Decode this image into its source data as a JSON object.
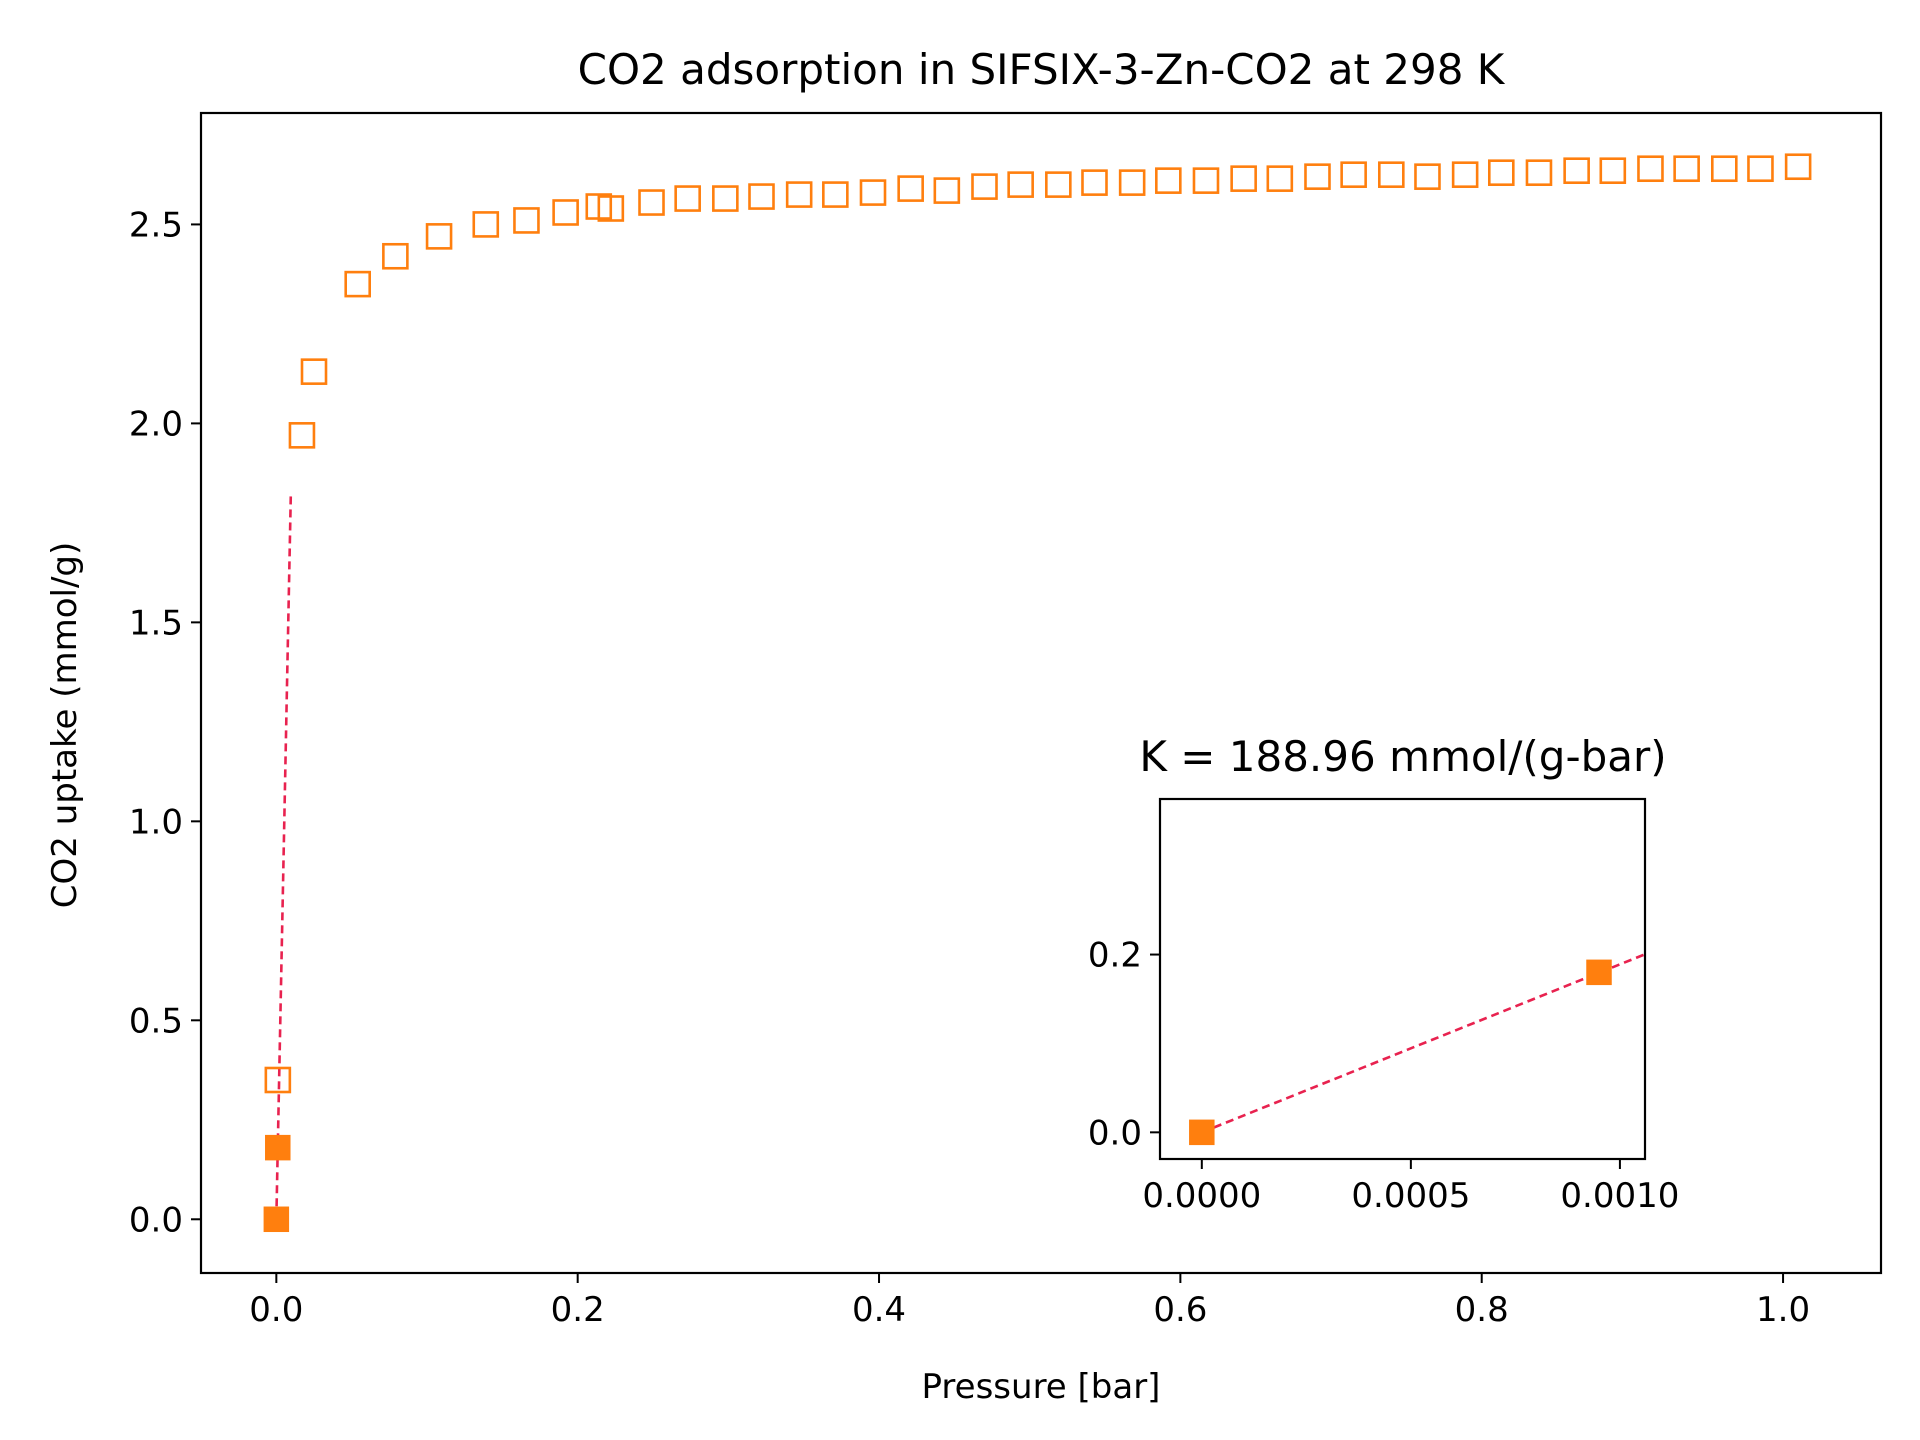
{
  "chart_data": [
    {
      "type": "scatter",
      "title": "CO2 adsorption in SIFSIX-3-Zn-CO2 at 298 K",
      "xlabel": "Pressure [bar]",
      "ylabel": "CO2 uptake (mmol/g)",
      "xlim": [
        -0.05,
        1.065
      ],
      "ylim": [
        -0.135,
        2.78
      ],
      "xticks": [
        0.0,
        0.2,
        0.4,
        0.6,
        0.8,
        1.0
      ],
      "xtick_labels": [
        "0.0",
        "0.2",
        "0.4",
        "0.6",
        "0.8",
        "1.0"
      ],
      "yticks": [
        0.0,
        0.5,
        1.0,
        1.5,
        2.0,
        2.5
      ],
      "ytick_labels": [
        "0.0",
        "0.5",
        "1.0",
        "1.5",
        "2.0",
        "2.5"
      ],
      "grid": false,
      "marker_color": "#ff7f0e",
      "fit_line_color": "#e8224f",
      "series": [
        {
          "marker": "hollow-square",
          "x": [
            0.001,
            0.017,
            0.025,
            0.054,
            0.079,
            0.108,
            0.139,
            0.166,
            0.192,
            0.214,
            0.222,
            0.249,
            0.273,
            0.298,
            0.322,
            0.347,
            0.371,
            0.396,
            0.421,
            0.445,
            0.47,
            0.494,
            0.519,
            0.543,
            0.568,
            0.592,
            0.617,
            0.642,
            0.666,
            0.691,
            0.715,
            0.74,
            0.764,
            0.789,
            0.813,
            0.838,
            0.863,
            0.887,
            0.912,
            0.936,
            0.961,
            0.985,
            1.01
          ],
          "y": [
            0.35,
            1.97,
            2.13,
            2.35,
            2.42,
            2.47,
            2.5,
            2.51,
            2.53,
            2.545,
            2.54,
            2.555,
            2.565,
            2.565,
            2.57,
            2.575,
            2.575,
            2.58,
            2.59,
            2.585,
            2.595,
            2.6,
            2.6,
            2.605,
            2.605,
            2.61,
            2.61,
            2.615,
            2.615,
            2.62,
            2.625,
            2.625,
            2.62,
            2.625,
            2.63,
            2.63,
            2.635,
            2.635,
            2.64,
            2.64,
            2.64,
            2.64,
            2.645
          ]
        },
        {
          "marker": "filled-square",
          "x": [
            0.0,
            0.00095
          ],
          "y": [
            0.0,
            0.18
          ]
        }
      ],
      "fit_line": {
        "x": [
          0.0,
          0.0096
        ],
        "y": [
          0.0,
          1.82
        ]
      }
    },
    {
      "type": "scatter",
      "title": "K = 188.96 mmol/(g-bar)",
      "xlim": [
        -0.0001,
        0.00106
      ],
      "ylim": [
        -0.03,
        0.375
      ],
      "xticks": [
        0.0,
        0.0005,
        0.001
      ],
      "xtick_labels": [
        "0.0000",
        "0.0005",
        "0.0010"
      ],
      "yticks": [
        0.0,
        0.2
      ],
      "ytick_labels": [
        "0.0",
        "0.2"
      ],
      "grid": false,
      "marker_color": "#ff7f0e",
      "fit_line_color": "#e8224f",
      "series": [
        {
          "marker": "filled-square",
          "x": [
            0.0,
            0.00095
          ],
          "y": [
            0.0,
            0.18
          ]
        }
      ],
      "fit_line": {
        "x": [
          0.0,
          0.00106
        ],
        "y": [
          0.0,
          0.2003
        ]
      }
    }
  ]
}
